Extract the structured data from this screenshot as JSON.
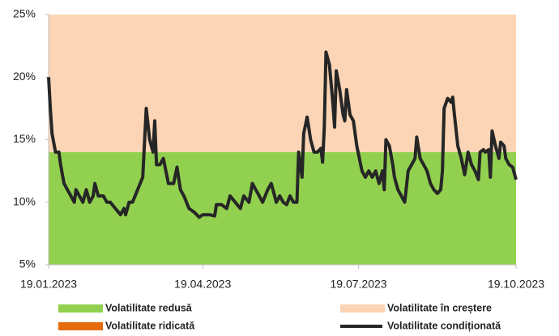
{
  "chart_data": {
    "type": "line",
    "xlim": [
      "19.01.2023",
      "19.10.2023"
    ],
    "xticks": [
      "19.01.2023",
      "19.04.2023",
      "19.07.2023",
      "19.10.2023"
    ],
    "ylim": [
      5,
      25
    ],
    "yticks": [
      {
        "value": 5,
        "label": "5%"
      },
      {
        "value": 10,
        "label": "10%"
      },
      {
        "value": 15,
        "label": "15%"
      },
      {
        "value": 20,
        "label": "20%"
      },
      {
        "value": 25,
        "label": "25%"
      }
    ],
    "series": [
      {
        "name": "Volatilitate redusă",
        "type": "band",
        "color": "#92d050",
        "range": [
          5,
          14
        ]
      },
      {
        "name": "Volatilitate în creștere",
        "type": "band",
        "color": "#fbd5b5",
        "range": [
          14,
          25
        ]
      },
      {
        "name": "Volatilitate ridicată",
        "type": "band",
        "color": "#e46c0a"
      },
      {
        "name": "Volatilitate condiționată",
        "type": "line",
        "color": "#262626",
        "x": [
          "19.01.2023",
          "20.01.2023",
          "21.01.2023",
          "23.01.2023",
          "25.01.2023",
          "26.01.2023",
          "28.01.2023",
          "30.01.2023",
          "01.02.2023",
          "03.02.2023",
          "04.02.2023",
          "06.02.2023",
          "08.02.2023",
          "10.02.2023",
          "12.02.2023",
          "14.02.2023",
          "15.02.2023",
          "17.02.2023",
          "20.02.2023",
          "22.02.2023",
          "24.02.2023",
          "27.02.2023",
          "02.03.2023",
          "04.03.2023",
          "05.03.2023",
          "07.03.2023",
          "09.03.2023",
          "12.03.2023",
          "15.03.2023",
          "17.03.2023",
          "19.03.2023",
          "21.03.2023",
          "22.03.2023",
          "23.03.2023",
          "25.03.2023",
          "27.03.2023",
          "30.03.2023",
          "02.04.2023",
          "04.04.2023",
          "06.04.2023",
          "08.04.2023",
          "11.04.2023",
          "14.04.2023",
          "17.04.2023",
          "19.04.2023",
          "23.04.2023",
          "26.04.2023",
          "27.04.2023",
          "30.04.2023",
          "03.05.2023",
          "05.05.2023",
          "08.05.2023",
          "11.05.2023",
          "13.05.2023",
          "16.05.2023",
          "18.05.2023",
          "20.05.2023",
          "22.05.2023",
          "24.05.2023",
          "27.05.2023",
          "29.05.2023",
          "31.05.2023",
          "01.06.2023",
          "03.06.2023",
          "05.06.2023",
          "07.06.2023",
          "09.06.2023",
          "11.06.2023",
          "13.06.2023",
          "14.06.2023",
          "16.06.2023",
          "17.06.2023",
          "19.06.2023",
          "21.06.2023",
          "23.06.2023",
          "25.06.2023",
          "27.06.2023",
          "28.06.2023",
          "29.06.2023",
          "30.06.2023",
          "02.07.2023",
          "04.07.2023",
          "05.07.2023",
          "06.07.2023",
          "08.07.2023",
          "10.07.2023",
          "11.07.2023",
          "12.07.2023",
          "14.07.2023",
          "16.07.2023",
          "18.07.2023",
          "21.07.2023",
          "23.07.2023",
          "25.07.2023",
          "27.07.2023",
          "29.07.2023",
          "31.07.2023",
          "02.08.2023",
          "03.08.2023",
          "04.08.2023",
          "06.08.2023",
          "08.08.2023",
          "09.08.2023",
          "11.08.2023",
          "13.08.2023",
          "15.08.2023",
          "17.08.2023",
          "19.08.2023",
          "21.08.2023",
          "22.08.2023",
          "24.08.2023",
          "26.08.2023",
          "28.08.2023",
          "30.08.2023",
          "01.09.2023",
          "03.09.2023",
          "05.09.2023",
          "06.09.2023",
          "07.09.2023",
          "09.09.2023",
          "11.09.2023",
          "12.09.2023",
          "13.09.2023",
          "15.09.2023",
          "17.09.2023",
          "19.09.2023",
          "21.09.2023",
          "23.09.2023",
          "25.09.2023",
          "27.09.2023",
          "28.09.2023",
          "30.09.2023",
          "01.10.2023",
          "03.10.2023",
          "04.10.2023",
          "05.10.2023",
          "07.10.2023",
          "09.10.2023",
          "10.10.2023",
          "12.10.2023",
          "13.10.2023",
          "15.10.2023",
          "17.10.2023",
          "19.10.2023"
        ],
        "values": [
          20,
          17.5,
          15.5,
          14,
          14,
          13,
          11.5,
          11,
          10.5,
          10,
          11,
          10.5,
          10,
          11,
          10,
          10.5,
          11.5,
          10.5,
          10.5,
          10,
          10,
          9.5,
          9,
          9.5,
          9,
          10,
          10,
          11,
          12,
          17.5,
          15,
          14,
          16.5,
          13,
          13,
          13.5,
          11.5,
          11.5,
          12.8,
          11,
          10.5,
          9.5,
          9.2,
          8.8,
          9,
          9,
          8.9,
          9.8,
          9.8,
          9.5,
          10.5,
          10,
          9.5,
          10.5,
          10,
          11.5,
          11,
          10.5,
          10,
          11,
          11.5,
          10.5,
          10,
          10.5,
          10,
          9.8,
          10.5,
          10,
          10,
          14,
          12,
          15.5,
          16.8,
          15,
          14,
          14,
          14.3,
          13.2,
          16,
          22,
          21,
          18,
          16,
          20.5,
          19,
          17,
          16.5,
          19,
          17,
          16.5,
          14.5,
          12.5,
          12,
          12.5,
          12,
          12.5,
          11.5,
          12.5,
          11,
          15,
          14.5,
          13,
          12,
          11,
          10.5,
          10,
          12.5,
          13,
          13.5,
          15.2,
          13.5,
          13,
          12.5,
          11.5,
          11,
          10.7,
          11,
          12.5,
          17.5,
          18.3,
          18,
          18.4,
          17,
          14.5,
          13.5,
          12.2,
          14,
          13,
          12.5,
          11.8,
          14,
          14.2,
          14,
          14.2,
          12,
          15.7,
          14.5,
          13.5,
          14.8,
          14.5,
          13.5,
          13,
          12.8,
          11.8
        ]
      }
    ]
  }
}
